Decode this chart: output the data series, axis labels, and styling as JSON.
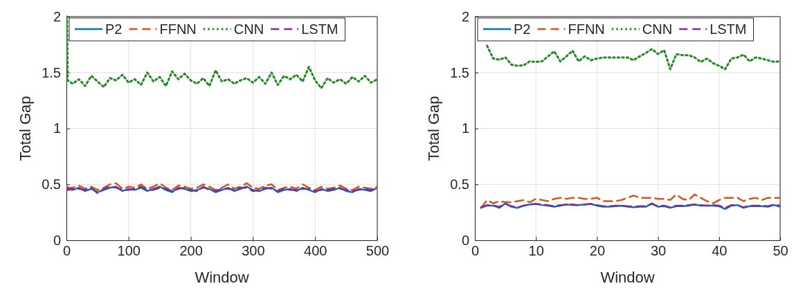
{
  "chart_data": [
    {
      "type": "line",
      "xlabel": "Window",
      "ylabel": "Total Gap",
      "xlim": [
        0,
        500
      ],
      "xticks": [
        0,
        100,
        200,
        300,
        400,
        500
      ],
      "ylim": [
        0,
        2
      ],
      "yticks": [
        0,
        0.5,
        1,
        1.5,
        2
      ],
      "grid": true,
      "legend": "top",
      "x": [
        1,
        2,
        10,
        20,
        30,
        40,
        50,
        60,
        70,
        80,
        90,
        100,
        110,
        120,
        130,
        140,
        150,
        160,
        170,
        180,
        190,
        200,
        210,
        220,
        230,
        240,
        250,
        260,
        270,
        280,
        290,
        300,
        310,
        320,
        330,
        340,
        350,
        360,
        370,
        380,
        390,
        400,
        410,
        420,
        430,
        440,
        450,
        460,
        470,
        480,
        490,
        500
      ],
      "series": [
        {
          "name": "P2",
          "color": "#0072bd",
          "line_style": "solid",
          "values": [
            0.46,
            0.46,
            0.45,
            0.47,
            0.44,
            0.46,
            0.43,
            0.45,
            0.47,
            0.48,
            0.44,
            0.46,
            0.45,
            0.47,
            0.44,
            0.46,
            0.48,
            0.45,
            0.43,
            0.47,
            0.46,
            0.44,
            0.45,
            0.47,
            0.46,
            0.43,
            0.45,
            0.47,
            0.44,
            0.46,
            0.48,
            0.45,
            0.44,
            0.46,
            0.47,
            0.43,
            0.45,
            0.46,
            0.44,
            0.47,
            0.45,
            0.43,
            0.46,
            0.44,
            0.45,
            0.47,
            0.44,
            0.43,
            0.46,
            0.45,
            0.44,
            0.47
          ]
        },
        {
          "name": "FFNN",
          "color": "#d95319",
          "line_style": "dashed",
          "values": [
            0.48,
            0.47,
            0.47,
            0.49,
            0.46,
            0.48,
            0.45,
            0.47,
            0.5,
            0.51,
            0.46,
            0.48,
            0.47,
            0.5,
            0.46,
            0.48,
            0.51,
            0.47,
            0.45,
            0.49,
            0.48,
            0.46,
            0.47,
            0.5,
            0.48,
            0.45,
            0.47,
            0.5,
            0.46,
            0.48,
            0.51,
            0.47,
            0.46,
            0.49,
            0.5,
            0.45,
            0.47,
            0.48,
            0.46,
            0.5,
            0.47,
            0.45,
            0.48,
            0.46,
            0.47,
            0.49,
            0.46,
            0.45,
            0.48,
            0.47,
            0.46,
            0.48
          ]
        },
        {
          "name": "CNN",
          "color": "#1f8a1f",
          "line_style": "dotted",
          "values": [
            2.0,
            1.43,
            1.4,
            1.44,
            1.38,
            1.47,
            1.42,
            1.37,
            1.45,
            1.43,
            1.48,
            1.41,
            1.44,
            1.39,
            1.5,
            1.42,
            1.46,
            1.38,
            1.51,
            1.44,
            1.49,
            1.43,
            1.4,
            1.45,
            1.38,
            1.52,
            1.42,
            1.44,
            1.4,
            1.43,
            1.45,
            1.41,
            1.46,
            1.4,
            1.5,
            1.39,
            1.47,
            1.44,
            1.48,
            1.42,
            1.55,
            1.43,
            1.36,
            1.45,
            1.41,
            1.44,
            1.4,
            1.46,
            1.42,
            1.47,
            1.41,
            1.44
          ]
        },
        {
          "name": "LSTM",
          "color": "#7e2f8e",
          "line_style": "dashed",
          "values": [
            0.47,
            0.45,
            0.46,
            0.46,
            0.45,
            0.47,
            0.42,
            0.46,
            0.48,
            0.47,
            0.45,
            0.45,
            0.46,
            0.48,
            0.45,
            0.45,
            0.47,
            0.46,
            0.44,
            0.46,
            0.47,
            0.45,
            0.44,
            0.48,
            0.45,
            0.44,
            0.46,
            0.46,
            0.45,
            0.47,
            0.47,
            0.44,
            0.45,
            0.47,
            0.46,
            0.44,
            0.46,
            0.45,
            0.45,
            0.46,
            0.46,
            0.44,
            0.45,
            0.45,
            0.46,
            0.46,
            0.45,
            0.44,
            0.45,
            0.46,
            0.45,
            0.46
          ]
        }
      ]
    },
    {
      "type": "line",
      "xlabel": "Window",
      "ylabel": "Total Gap",
      "xlim": [
        0,
        50
      ],
      "xticks": [
        0,
        10,
        20,
        30,
        40,
        50
      ],
      "ylim": [
        0,
        2
      ],
      "yticks": [
        0,
        0.5,
        1,
        1.5,
        2
      ],
      "grid": true,
      "legend": "top",
      "x": [
        1,
        2,
        3,
        4,
        5,
        6,
        7,
        8,
        9,
        10,
        11,
        12,
        13,
        14,
        15,
        16,
        17,
        18,
        19,
        20,
        21,
        22,
        23,
        24,
        25,
        26,
        27,
        28,
        29,
        30,
        31,
        32,
        33,
        34,
        35,
        36,
        37,
        38,
        39,
        40,
        41,
        42,
        43,
        44,
        45,
        46,
        47,
        48,
        49,
        50
      ],
      "series": [
        {
          "name": "P2",
          "color": "#0072bd",
          "line_style": "solid",
          "values": [
            0.29,
            0.31,
            0.31,
            0.29,
            0.33,
            0.3,
            0.29,
            0.31,
            0.32,
            0.325,
            0.315,
            0.31,
            0.3,
            0.31,
            0.32,
            0.315,
            0.315,
            0.32,
            0.325,
            0.31,
            0.3,
            0.3,
            0.305,
            0.31,
            0.3,
            0.295,
            0.3,
            0.3,
            0.33,
            0.3,
            0.305,
            0.29,
            0.305,
            0.305,
            0.31,
            0.32,
            0.31,
            0.31,
            0.31,
            0.305,
            0.28,
            0.31,
            0.315,
            0.29,
            0.305,
            0.305,
            0.305,
            0.3,
            0.315,
            0.3
          ]
        },
        {
          "name": "FFNN",
          "color": "#d95319",
          "line_style": "dashed",
          "values": [
            0.29,
            0.36,
            0.33,
            0.35,
            0.34,
            0.34,
            0.35,
            0.36,
            0.34,
            0.37,
            0.36,
            0.35,
            0.37,
            0.38,
            0.37,
            0.38,
            0.38,
            0.37,
            0.37,
            0.38,
            0.35,
            0.35,
            0.35,
            0.36,
            0.38,
            0.4,
            0.38,
            0.38,
            0.38,
            0.37,
            0.37,
            0.36,
            0.41,
            0.37,
            0.36,
            0.41,
            0.38,
            0.35,
            0.33,
            0.36,
            0.38,
            0.38,
            0.38,
            0.35,
            0.37,
            0.38,
            0.36,
            0.38,
            0.38,
            0.38
          ]
        },
        {
          "name": "CNN",
          "color": "#1f8a1f",
          "line_style": "dotted",
          "values": [
            null,
            1.74,
            1.625,
            1.615,
            1.635,
            1.57,
            1.56,
            1.565,
            1.6,
            1.595,
            1.6,
            1.645,
            1.69,
            1.6,
            1.645,
            1.695,
            1.6,
            1.645,
            1.61,
            1.625,
            1.635,
            1.635,
            1.635,
            1.635,
            1.635,
            1.61,
            1.645,
            1.675,
            1.71,
            1.665,
            1.7,
            1.53,
            1.665,
            1.655,
            1.655,
            1.635,
            1.595,
            1.625,
            1.585,
            1.56,
            1.53,
            1.625,
            1.635,
            1.66,
            1.6,
            1.635,
            1.625,
            1.61,
            1.595,
            1.6
          ]
        },
        {
          "name": "LSTM",
          "color": "#7e2f8e",
          "line_style": "dashed",
          "values": [
            0.295,
            0.315,
            0.31,
            0.3,
            0.325,
            0.305,
            0.295,
            0.31,
            0.32,
            0.325,
            0.32,
            0.315,
            0.305,
            0.315,
            0.32,
            0.32,
            0.315,
            0.32,
            0.325,
            0.315,
            0.305,
            0.305,
            0.31,
            0.31,
            0.305,
            0.3,
            0.305,
            0.305,
            0.325,
            0.305,
            0.31,
            0.295,
            0.31,
            0.31,
            0.315,
            0.32,
            0.315,
            0.31,
            0.315,
            0.31,
            0.29,
            0.315,
            0.315,
            0.295,
            0.31,
            0.31,
            0.31,
            0.305,
            0.32,
            0.31
          ]
        }
      ]
    }
  ]
}
